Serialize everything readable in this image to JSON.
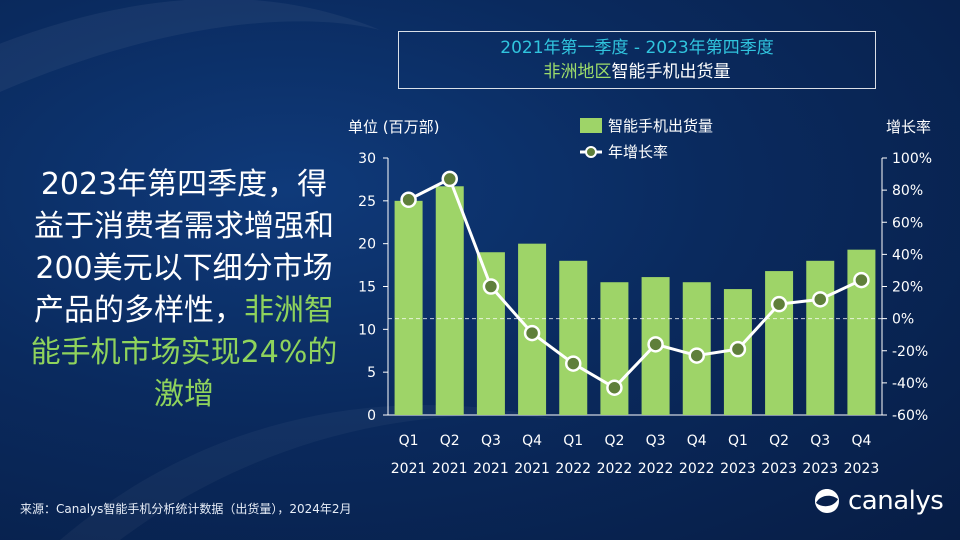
{
  "title": {
    "line1": "2021年第一季度  - 2023年第四季度",
    "line2_highlight": "非洲地区",
    "line2_rest": "智能手机出货量"
  },
  "callout": {
    "text_white": "2023年第四季度，得益于消费者需求增强和200美元以下细分市场产品的多样性，",
    "text_highlight": "非洲智能手机市场实现24%的激增"
  },
  "footer": {
    "source": "来源：Canalys智能手机分析统计数据（出货量），2024年2月"
  },
  "logo": {
    "text": "canalys"
  },
  "colors": {
    "bar": "#9ed468",
    "line": "#ffffff",
    "marker": "#5f7f3a",
    "title_accent": "#30c4de",
    "highlight": "#8fd35c"
  },
  "chart_data": {
    "type": "bar+line",
    "categories": [
      {
        "q": "Q1",
        "y": "2021"
      },
      {
        "q": "Q2",
        "y": "2021"
      },
      {
        "q": "Q3",
        "y": "2021"
      },
      {
        "q": "Q4",
        "y": "2021"
      },
      {
        "q": "Q1",
        "y": "2022"
      },
      {
        "q": "Q2",
        "y": "2022"
      },
      {
        "q": "Q3",
        "y": "2022"
      },
      {
        "q": "Q4",
        "y": "2022"
      },
      {
        "q": "Q1",
        "y": "2023"
      },
      {
        "q": "Q2",
        "y": "2023"
      },
      {
        "q": "Q3",
        "y": "2023"
      },
      {
        "q": "Q4",
        "y": "2023"
      }
    ],
    "series": [
      {
        "name": "智能手机出货量",
        "type": "bar",
        "axis": "left",
        "values": [
          25.0,
          26.7,
          19.0,
          20.0,
          18.0,
          15.5,
          16.1,
          15.5,
          14.7,
          16.8,
          18.0,
          19.3
        ]
      },
      {
        "name": "年增长率",
        "type": "line",
        "axis": "right",
        "values": [
          74,
          87,
          20,
          -9,
          -28,
          -43,
          -16,
          -23,
          -19,
          9,
          12,
          24
        ]
      }
    ],
    "left_axis": {
      "label": "单位 (百万部)",
      "min": 0,
      "max": 30,
      "ticks": [
        0,
        5,
        10,
        15,
        20,
        25,
        30
      ]
    },
    "right_axis": {
      "label": "增长率",
      "min": -60,
      "max": 100,
      "ticks": [
        "-60%",
        "-40%",
        "-20%",
        "0%",
        "20%",
        "40%",
        "60%",
        "80%",
        "100%"
      ]
    },
    "legend": {
      "placement": "top-center",
      "bar_label": "智能手机出货量",
      "line_label": "年增长率"
    },
    "zero_line": "dashed"
  }
}
